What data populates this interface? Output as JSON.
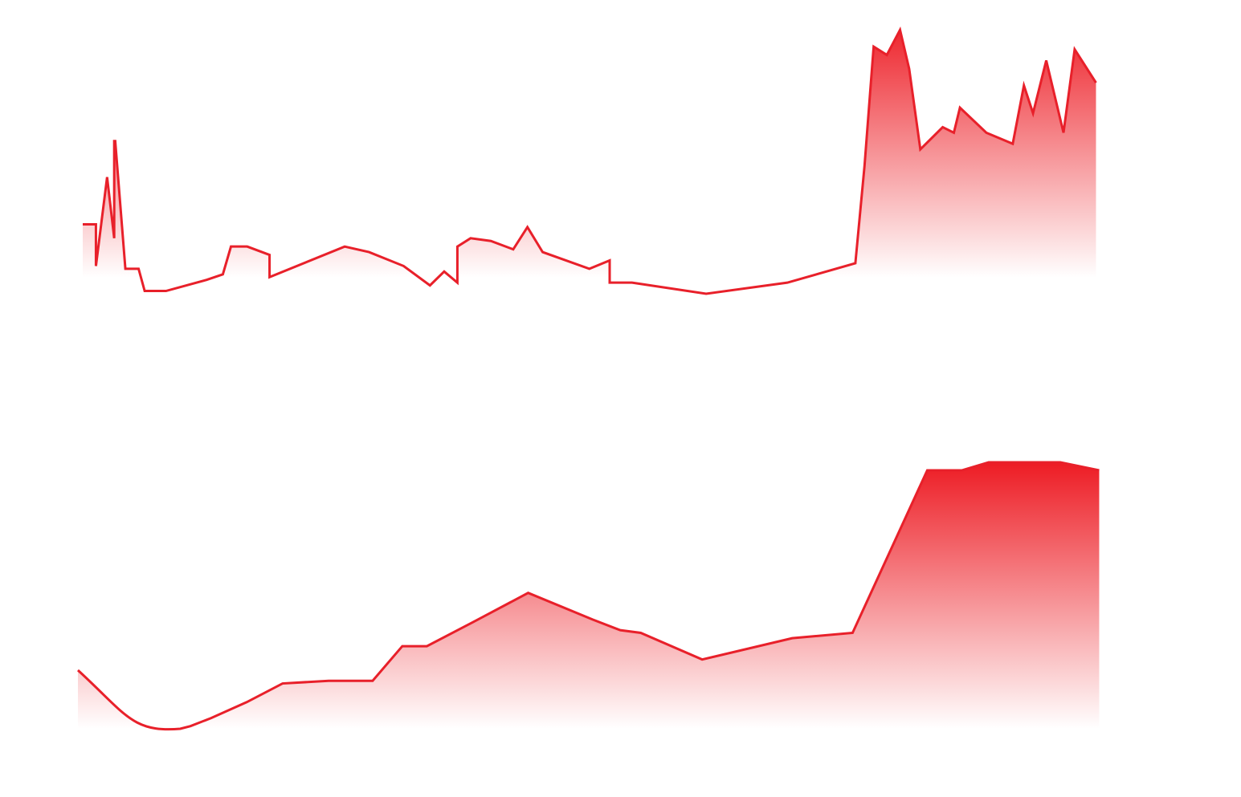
{
  "colors": {
    "line": "#e8202a",
    "fill_top": "#ed1c24"
  },
  "chart_data": [
    {
      "type": "area",
      "title": "",
      "xlabel": "",
      "ylabel": "",
      "grid": false,
      "legend": "none",
      "xlim": [
        0,
        100
      ],
      "ylim": [
        0,
        100
      ],
      "series": [
        {
          "x": [
            0,
            1.3,
            1.3,
            2.4,
            3.1,
            3.1,
            3.2,
            4.2,
            5.5,
            6.1,
            8.2,
            12.2,
            13.8,
            14.6,
            16.2,
            18.4,
            18.4,
            25.8,
            28.2,
            31.6,
            34.2,
            35.6,
            36.9,
            36.9,
            38.2,
            40.2,
            42.4,
            43.8,
            45.3,
            49.9,
            51.9,
            51.9,
            54.1,
            61.4,
            69.4,
            76.1,
            77.0,
            77.9,
            79.2,
            80.5,
            81.4,
            82.5,
            84.7,
            85.8,
            86.4,
            89.0,
            91.6,
            92.7,
            93.6,
            94.9,
            96.6,
            97.7,
            99.8
          ],
          "values": [
            25,
            25,
            10,
            42,
            20,
            55,
            55,
            9,
            9,
            1,
            1,
            5,
            7,
            17,
            17,
            14,
            6,
            17,
            15,
            10,
            3,
            8,
            4,
            17,
            20,
            19,
            16,
            24,
            15,
            9,
            12,
            4,
            4,
            0,
            4,
            11,
            46,
            89,
            86,
            95,
            81,
            52,
            60,
            58,
            67,
            58,
            54,
            75,
            65,
            84,
            58,
            88,
            76
          ]
        }
      ]
    },
    {
      "type": "area",
      "title": "",
      "xlabel": "",
      "ylabel": "",
      "grid": false,
      "legend": "none",
      "xlim": [
        0,
        100
      ],
      "ylim": [
        0,
        100
      ],
      "series": [
        {
          "x": [
            0,
            3.5,
            7.0,
            10.0,
            11.0,
            13.0,
            16.5,
            20.0,
            24.5,
            28.8,
            31.7,
            34.1,
            38.6,
            44.0,
            50.3,
            53.0,
            55.0,
            61.0,
            69.8,
            75.7,
            83.0,
            86.4,
            89.0,
            96.0,
            99.8
          ],
          "values": [
            22,
            12,
            4,
            0,
            1,
            4,
            10,
            17,
            18,
            18,
            31,
            31,
            40,
            51,
            41,
            37,
            36,
            26,
            34,
            36,
            97,
            97,
            100,
            100,
            97
          ]
        }
      ]
    }
  ]
}
